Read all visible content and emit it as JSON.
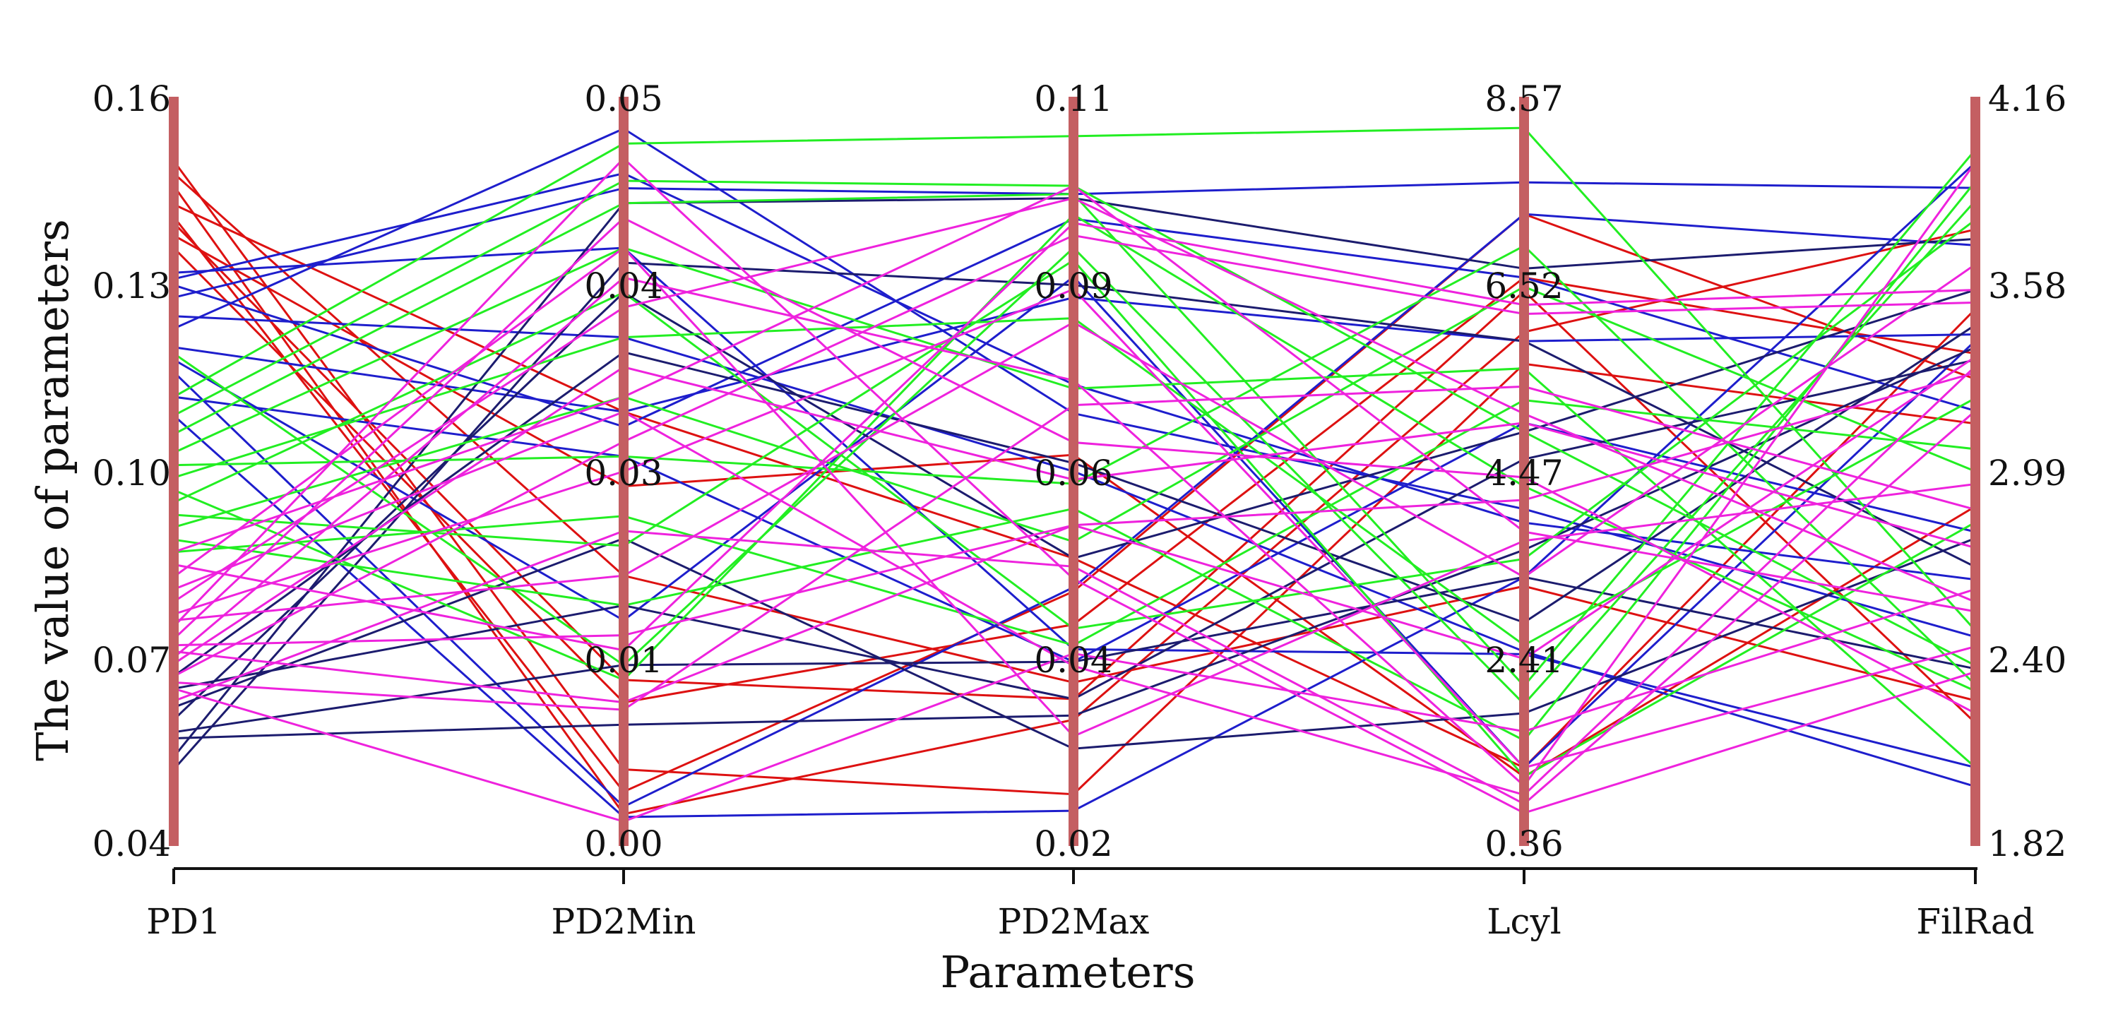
{
  "chart_data": {
    "type": "parallel-coordinates",
    "xlabel": "Parameters",
    "ylabel": "The value of  parameters",
    "axes": [
      {
        "name": "PD1",
        "ticks": [
          "0.16",
          "0.13",
          "0.10",
          "0.07",
          "0.04"
        ],
        "range": [
          0.04,
          0.16
        ]
      },
      {
        "name": "PD2Min",
        "ticks": [
          "0.05",
          "0.04",
          "0.03",
          "0.01",
          "0.00"
        ],
        "range": [
          0.0,
          0.05
        ]
      },
      {
        "name": "PD2Max",
        "ticks": [
          "0.11",
          "0.09",
          "0.06",
          "0.04",
          "0.02"
        ],
        "range": [
          0.02,
          0.11
        ]
      },
      {
        "name": "Lcyl",
        "ticks": [
          "8.57",
          "6.52",
          "4.47",
          "2.41",
          "0.36"
        ],
        "range": [
          0.36,
          8.57
        ]
      },
      {
        "name": "FilRad",
        "ticks": [
          "4.16",
          "3.58",
          "2.99",
          "2.40",
          "1.82"
        ],
        "range": [
          1.82,
          4.16
        ]
      }
    ],
    "colors": {
      "axis_bar": "#c45f62",
      "red": "#dd1111",
      "blue": "#1e1ecc",
      "navy": "#1c1c6e",
      "green": "#22ee22",
      "magenta": "#ee22dd"
    },
    "lines": [
      {
        "group": "red",
        "values": [
          0.148,
          0.018,
          0.0395,
          3.2,
          2.27
        ]
      },
      {
        "group": "red",
        "values": [
          0.146,
          0.002,
          0.035,
          6.0,
          3.75
        ]
      },
      {
        "group": "red",
        "values": [
          0.143,
          0.029,
          0.0545,
          1.2,
          3.5
        ]
      },
      {
        "group": "red",
        "values": [
          0.141,
          0.0035,
          0.0505,
          7.3,
          3.28
        ]
      },
      {
        "group": "red",
        "values": [
          0.14,
          0.011,
          0.0375,
          6.45,
          2.2
        ]
      },
      {
        "group": "red",
        "values": [
          0.138,
          0.024,
          0.067,
          1.1,
          2.88
        ]
      },
      {
        "group": "red",
        "values": [
          0.136,
          0.0095,
          0.0465,
          6.6,
          3.36
        ]
      },
      {
        "group": "red",
        "values": [
          0.15,
          0.005,
          0.026,
          5.65,
          3.14
        ]
      },
      {
        "group": "blue",
        "values": [
          0.128,
          0.044,
          0.0985,
          7.65,
          3.88
        ]
      },
      {
        "group": "blue",
        "values": [
          0.123,
          0.048,
          0.072,
          4.05,
          2.47
        ]
      },
      {
        "group": "blue",
        "values": [
          0.125,
          0.034,
          0.065,
          2.48,
          2.0
        ]
      },
      {
        "group": "blue",
        "values": [
          0.12,
          0.029,
          0.086,
          5.9,
          3.42
        ]
      },
      {
        "group": "blue",
        "values": [
          0.116,
          0.0025,
          0.051,
          7.3,
          3.7
        ]
      },
      {
        "group": "blue",
        "values": [
          0.112,
          0.026,
          0.042,
          5.0,
          2.8
        ]
      },
      {
        "group": "blue",
        "values": [
          0.109,
          0.0018,
          0.024,
          3.3,
          3.96
        ]
      },
      {
        "group": "blue",
        "values": [
          0.132,
          0.04,
          0.0435,
          2.45,
          2.06
        ]
      },
      {
        "group": "blue",
        "values": [
          0.13,
          0.028,
          0.0955,
          6.6,
          3.18
        ]
      },
      {
        "group": "blue",
        "values": [
          0.118,
          0.015,
          0.0885,
          1.2,
          3.4
        ]
      },
      {
        "group": "blue",
        "values": [
          0.131,
          0.045,
          0.0755,
          3.9,
          2.65
        ]
      },
      {
        "group": "navy",
        "values": [
          0.065,
          0.016,
          0.0375,
          4.6,
          3.34
        ]
      },
      {
        "group": "navy",
        "values": [
          0.062,
          0.0205,
          0.0315,
          1.8,
          2.78
        ]
      },
      {
        "group": "navy",
        "values": [
          0.06,
          0.037,
          0.0545,
          4.9,
          3.56
        ]
      },
      {
        "group": "navy",
        "values": [
          0.058,
          0.012,
          0.042,
          3.3,
          2.37
        ]
      },
      {
        "group": "navy",
        "values": [
          0.057,
          0.008,
          0.0355,
          3.6,
          3.38
        ]
      },
      {
        "group": "navy",
        "values": [
          0.054,
          0.043,
          0.098,
          6.7,
          3.72
        ]
      },
      {
        "group": "navy",
        "values": [
          0.067,
          0.033,
          0.066,
          2.8,
          3.45
        ]
      },
      {
        "group": "navy",
        "values": [
          0.052,
          0.039,
          0.0875,
          5.9,
          2.69
        ]
      },
      {
        "group": "green",
        "values": [
          0.112,
          0.047,
          0.1055,
          8.25,
          2.49
        ]
      },
      {
        "group": "green",
        "values": [
          0.106,
          0.043,
          0.0985,
          2.1,
          4.0
        ]
      },
      {
        "group": "green",
        "values": [
          0.103,
          0.04,
          0.075,
          5.6,
          2.06
        ]
      },
      {
        "group": "green",
        "values": [
          0.101,
          0.026,
          0.0635,
          6.95,
          2.32
        ]
      },
      {
        "group": "green",
        "values": [
          0.099,
          0.034,
          0.0835,
          2.55,
          3.22
        ]
      },
      {
        "group": "green",
        "values": [
          0.097,
          0.011,
          0.096,
          4.3,
          2.3
        ]
      },
      {
        "group": "green",
        "values": [
          0.095,
          0.037,
          0.046,
          3.5,
          3.78
        ]
      },
      {
        "group": "green",
        "values": [
          0.093,
          0.02,
          0.0905,
          1.1,
          2.83
        ]
      },
      {
        "group": "green",
        "values": [
          0.091,
          0.03,
          0.0565,
          6.5,
          2.99
        ]
      },
      {
        "group": "green",
        "values": [
          0.089,
          0.016,
          0.0605,
          1.5,
          3.9
        ]
      },
      {
        "group": "green",
        "values": [
          0.109,
          0.0445,
          0.0995,
          4.9,
          2.38
        ]
      },
      {
        "group": "green",
        "values": [
          0.087,
          0.022,
          0.044,
          5.25,
          3.06
        ]
      },
      {
        "group": "green",
        "values": [
          0.119,
          0.012,
          0.092,
          1.9,
          3.84
        ]
      },
      {
        "group": "magenta",
        "values": [
          0.081,
          0.029,
          0.0415,
          0.9,
          3.32
        ]
      },
      {
        "group": "magenta",
        "values": [
          0.079,
          0.036,
          0.098,
          5.1,
          2.58
        ]
      },
      {
        "group": "magenta",
        "values": [
          0.076,
          0.018,
          0.083,
          3.3,
          3.64
        ]
      },
      {
        "group": "magenta",
        "values": [
          0.073,
          0.042,
          0.0685,
          4.4,
          2.23
        ]
      },
      {
        "group": "magenta",
        "values": [
          0.071,
          0.0095,
          0.0585,
          2.4,
          3.35
        ]
      },
      {
        "group": "magenta",
        "values": [
          0.069,
          0.032,
          0.064,
          5.0,
          2.75
        ]
      },
      {
        "group": "magenta",
        "values": [
          0.067,
          0.027,
          0.0935,
          6.2,
          3.52
        ]
      },
      {
        "group": "magenta",
        "values": [
          0.065,
          0.0015,
          0.043,
          1.6,
          2.62
        ]
      },
      {
        "group": "magenta",
        "values": [
          0.063,
          0.021,
          0.0535,
          0.8,
          3.18
        ]
      },
      {
        "group": "magenta",
        "values": [
          0.083,
          0.04,
          0.033,
          3.7,
          2.95
        ]
      },
      {
        "group": "magenta",
        "values": [
          0.085,
          0.013,
          0.095,
          6.3,
          3.56
        ]
      },
      {
        "group": "magenta",
        "values": [
          0.077,
          0.025,
          0.087,
          1.2,
          2.44
        ]
      },
      {
        "group": "magenta",
        "values": [
          0.075,
          0.046,
          0.052,
          0.7,
          2.36
        ]
      },
      {
        "group": "magenta",
        "values": [
          0.072,
          0.014,
          0.0585,
          4.15,
          3.3
        ]
      },
      {
        "group": "magenta",
        "values": [
          0.07,
          0.038,
          0.076,
          1.0,
          3.96
        ]
      },
      {
        "group": "magenta",
        "values": [
          0.087,
          0.03,
          0.0995,
          3.8,
          2.55
        ]
      },
      {
        "group": "magenta",
        "values": [
          0.066,
          0.009,
          0.073,
          5.4,
          2.87
        ]
      }
    ]
  }
}
